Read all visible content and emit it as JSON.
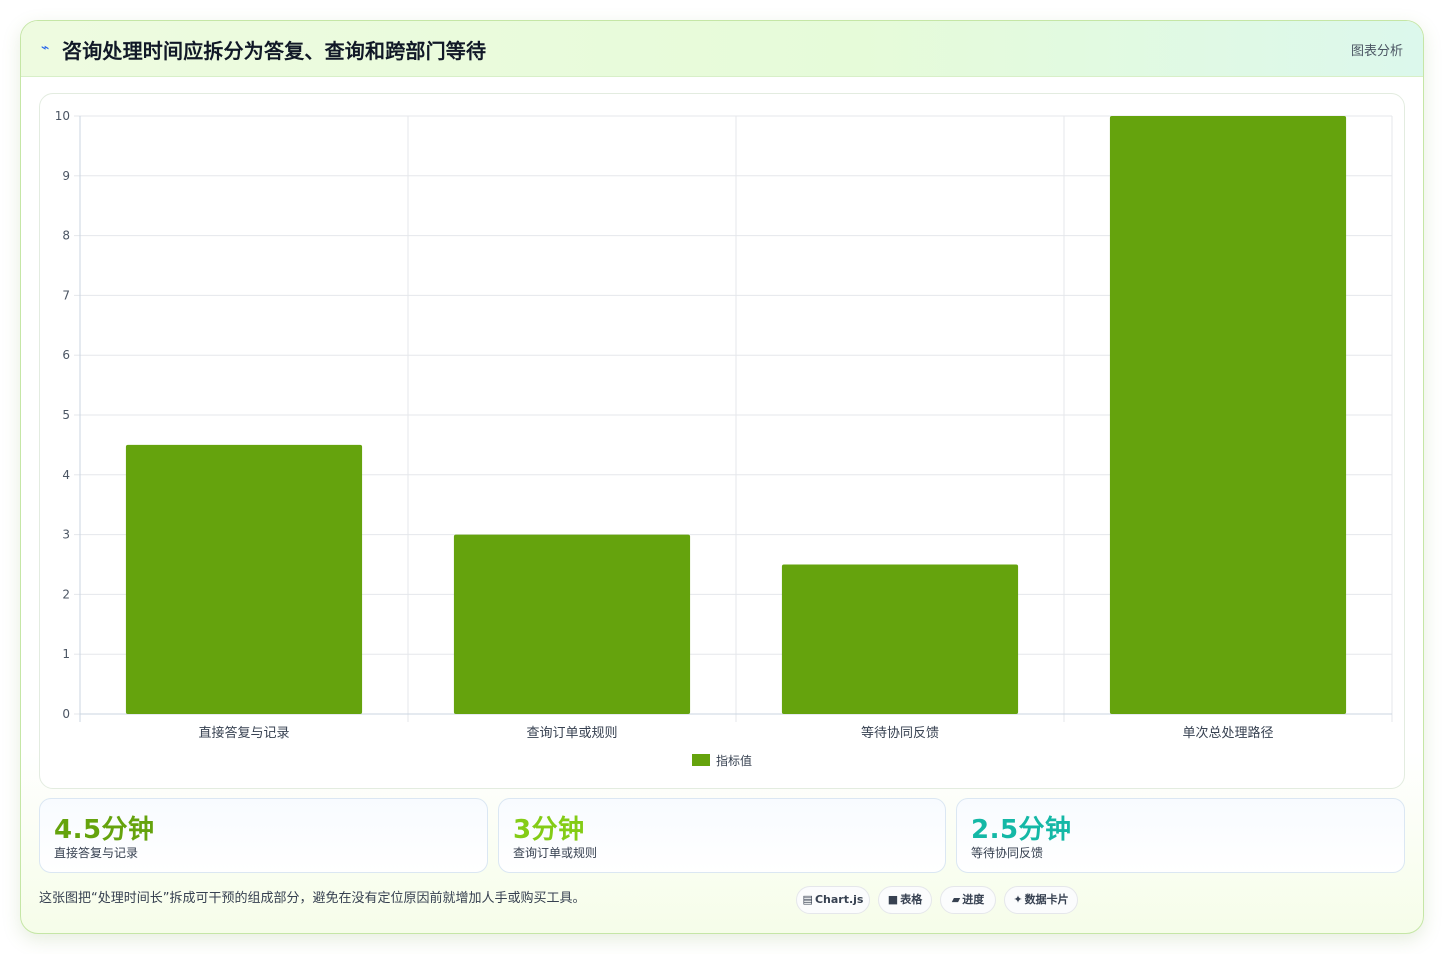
{
  "header": {
    "logo_glyph": "⌁",
    "title": "咨询处理时间应拆分为答复、查询和跨部门等待",
    "tag": "图表分析"
  },
  "chart_data": {
    "type": "bar",
    "categories": [
      "直接答复与记录",
      "查询订单或规则",
      "等待协同反馈",
      "单次总处理路径"
    ],
    "series": [
      {
        "name": "指标值",
        "values": [
          4.5,
          3,
          2.5,
          10
        ],
        "color": "#65a30d"
      }
    ],
    "ylim": [
      0,
      10
    ],
    "yticks": [
      "0",
      "1",
      "2",
      "3",
      "4",
      "5",
      "6",
      "7",
      "8",
      "9",
      "10"
    ],
    "grid": true,
    "legend": "bottom"
  },
  "stats": [
    {
      "value": "4.5分钟",
      "label": "直接答复与记录",
      "color": "#65a30d"
    },
    {
      "value": "3分钟",
      "label": "查询订单或规则",
      "color": "#84cc16"
    },
    {
      "value": "2.5分钟",
      "label": "等待协同反馈",
      "color": "#14b8a6"
    }
  ],
  "footer": {
    "note": "这张图把“处理时间长”拆成可干预的组成部分，避免在没有定位原因前就增加人手或购买工具。",
    "chips": [
      {
        "icon": "▤",
        "label": "Chart.js"
      },
      {
        "icon": "■",
        "label": "表格"
      },
      {
        "icon": "▰",
        "label": "进度"
      },
      {
        "icon": "✦",
        "label": "数据卡片"
      }
    ]
  }
}
